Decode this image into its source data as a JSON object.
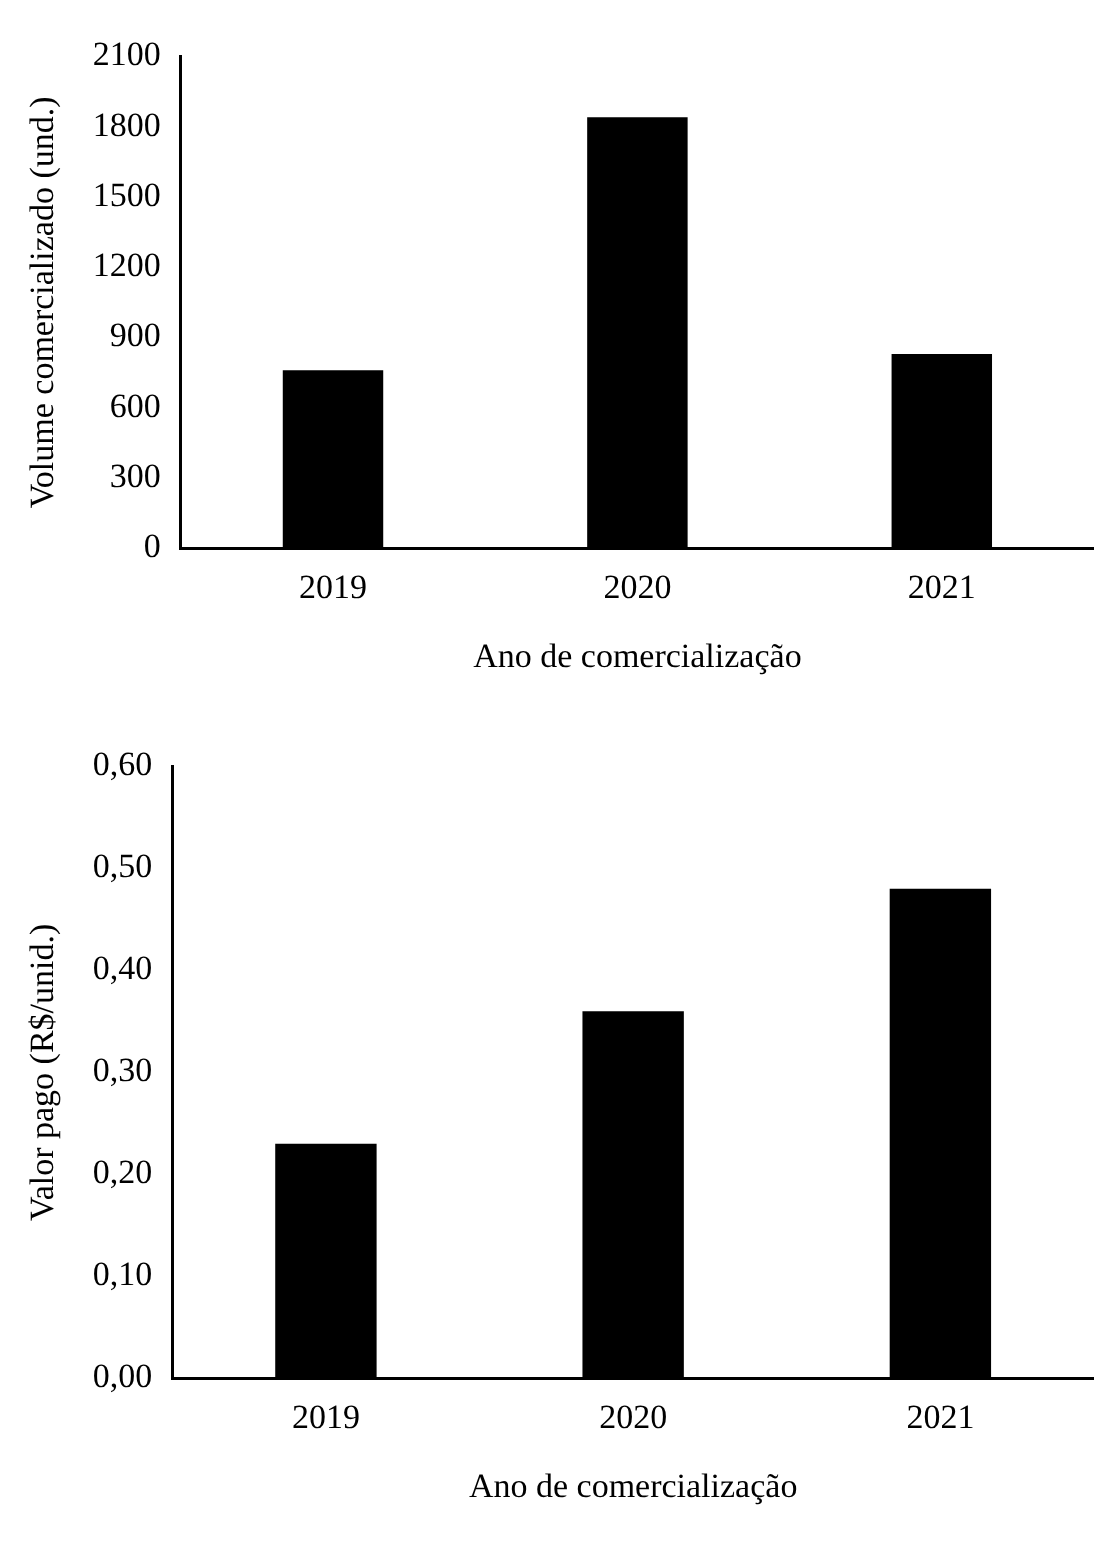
{
  "chart_data": [
    {
      "type": "bar",
      "xlabel": "Ano de comercialização",
      "ylabel": "Volume comercializado (und.)",
      "categories": [
        "2019",
        "2020",
        "2021"
      ],
      "values": [
        760,
        1840,
        830
      ],
      "color": "#000000",
      "ylim": [
        0,
        2100
      ],
      "yticks": [
        0,
        300,
        600,
        900,
        1200,
        1500,
        1800,
        2100
      ],
      "grid": false,
      "legend": false
    },
    {
      "type": "bar",
      "xlabel": "Ano de comercialização",
      "ylabel": "Valor pago (R$/unid.)",
      "categories": [
        "2019",
        "2020",
        "2021"
      ],
      "values": [
        0.23,
        0.36,
        0.48
      ],
      "color": "#000000",
      "ylim": [
        0,
        0.6
      ],
      "yticks": [
        {
          "value": 0,
          "label": "0,00"
        },
        {
          "value": 0.1,
          "label": "0,10"
        },
        {
          "value": 0.2,
          "label": "0,20"
        },
        {
          "value": 0.3,
          "label": "0,30"
        },
        {
          "value": 0.4,
          "label": "0,40"
        },
        {
          "value": 0.5,
          "label": "0,50"
        },
        {
          "value": 0.6,
          "label": "0,60"
        }
      ],
      "grid": false,
      "legend": false
    }
  ]
}
